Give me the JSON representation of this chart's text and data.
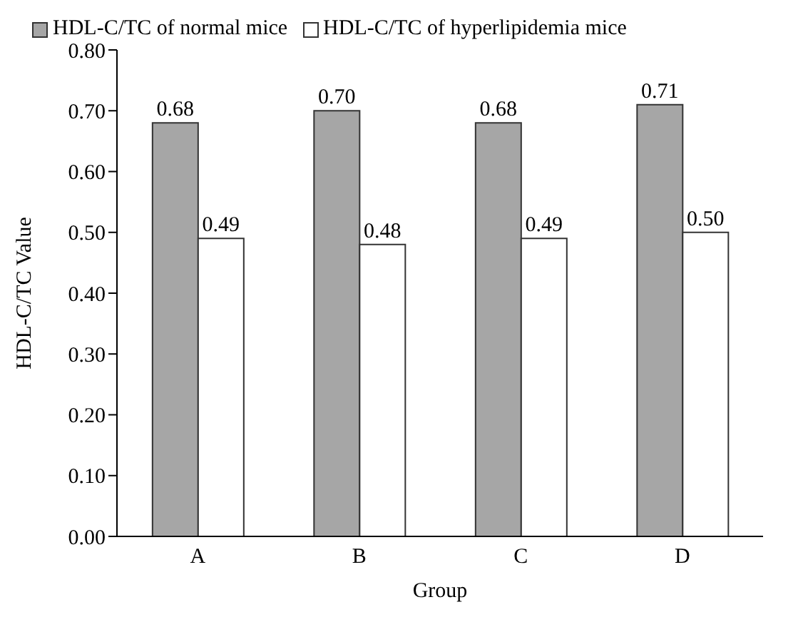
{
  "chart_data": {
    "type": "bar",
    "xlabel": "Group",
    "ylabel": "HDL-C/TC Value",
    "categories": [
      "A",
      "B",
      "C",
      "D"
    ],
    "series": [
      {
        "name": "HDL-C/TC of normal mice",
        "color": "#a6a6a6",
        "values": [
          0.68,
          0.7,
          0.68,
          0.71
        ],
        "value_labels": [
          "0.68",
          "0.70",
          "0.68",
          "0.71"
        ]
      },
      {
        "name": "HDL-C/TC of hyperlipidemia mice",
        "color": "#ffffff",
        "values": [
          0.49,
          0.48,
          0.49,
          0.5
        ],
        "value_labels": [
          "0.49",
          "0.48",
          "0.49",
          "0.50"
        ]
      }
    ],
    "ylim": [
      0,
      0.8
    ],
    "yticks": [
      {
        "value": 0,
        "label": "0.00"
      },
      {
        "value": 0.1,
        "label": "0.10"
      },
      {
        "value": 0.2,
        "label": "0.20"
      },
      {
        "value": 0.3,
        "label": "0.30"
      },
      {
        "value": 0.4,
        "label": "0.40"
      },
      {
        "value": 0.5,
        "label": "0.50"
      },
      {
        "value": 0.6,
        "label": "0.60"
      },
      {
        "value": 0.7,
        "label": "0.70"
      },
      {
        "value": 0.8,
        "label": "0.80"
      }
    ],
    "grid": false,
    "legend": "top"
  }
}
